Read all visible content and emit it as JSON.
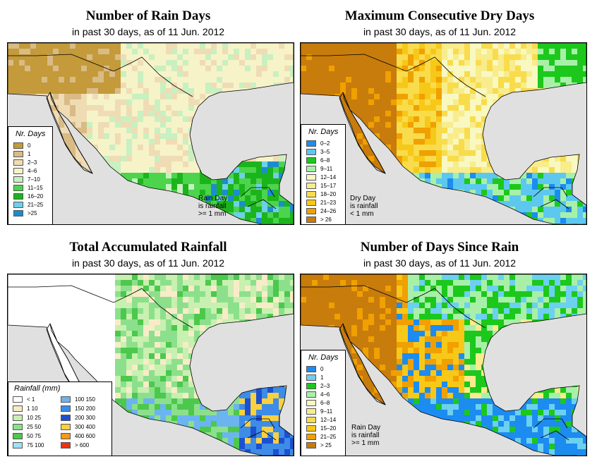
{
  "panels": [
    {
      "title": "Number of Rain Days",
      "subtitle": "in past 30 days, as of  11 Jun. 2012",
      "legend_title": "Nr. Days",
      "legend": [
        {
          "label": "0",
          "color": "#c49a3a"
        },
        {
          "label": "1",
          "color": "#d9bb85"
        },
        {
          "label": "2–3",
          "color": "#efdcb5"
        },
        {
          "label": "4–6",
          "color": "#f7f3c8"
        },
        {
          "label": "7–10",
          "color": "#c8f0c0"
        },
        {
          "label": "11–15",
          "color": "#4cd44c"
        },
        {
          "label": "16–20",
          "color": "#1cb41c"
        },
        {
          "label": "21–25",
          "color": "#6ed0e8"
        },
        {
          "label": ">25",
          "color": "#1c8cd0"
        }
      ],
      "note": "Rain Day\nis rainfall\n>= 1 mm"
    },
    {
      "title": "Maximum Consecutive Dry Days",
      "subtitle": "in past 30 days, as of  11 Jun. 2012",
      "legend_title": "Nr. Days",
      "legend": [
        {
          "label": "0–2",
          "color": "#1c8cf0"
        },
        {
          "label": "3–5",
          "color": "#5cc8f0"
        },
        {
          "label": "6–8",
          "color": "#1cc81c"
        },
        {
          "label": "9–11",
          "color": "#a8f0a8"
        },
        {
          "label": "12–14",
          "color": "#f8f8c0"
        },
        {
          "label": "15–17",
          "color": "#f8ec8c"
        },
        {
          "label": "18–20",
          "color": "#f8dc4c"
        },
        {
          "label": "21–23",
          "color": "#f8c818"
        },
        {
          "label": "24–26",
          "color": "#f0a000"
        },
        {
          "label": "> 26",
          "color": "#c87c0c"
        }
      ],
      "note": "Dry Day\nis rainfall\n< 1 mm"
    },
    {
      "title": "Total Accumulated Rainfall",
      "subtitle": "in past 30 days, as of  11 Jun. 2012",
      "legend_title": "Rainfall (mm)",
      "legend_left": [
        {
          "label": "< 1",
          "color": "#ffffff"
        },
        {
          "label": "1    10",
          "color": "#f8ecc8"
        },
        {
          "label": "10    25",
          "color": "#c8f0b0"
        },
        {
          "label": "25    50",
          "color": "#8ce08c"
        },
        {
          "label": "50    75",
          "color": "#4cc84c"
        },
        {
          "label": "75   100",
          "color": "#a0e0f8"
        }
      ],
      "legend_right": [
        {
          "label": "100  150",
          "color": "#6cb4f0"
        },
        {
          "label": "150  200",
          "color": "#3c8ce8"
        },
        {
          "label": "200  300",
          "color": "#1c50d0"
        },
        {
          "label": "300  400",
          "color": "#f8d040"
        },
        {
          "label": "400  600",
          "color": "#f89818"
        },
        {
          "label": "> 600",
          "color": "#f03010"
        }
      ]
    },
    {
      "title": "Number of Days Since Rain",
      "subtitle": "in past 30 days, as of  11 Jun. 2012",
      "legend_title": "Nr. Days",
      "legend": [
        {
          "label": "0",
          "color": "#1c8cf0"
        },
        {
          "label": "1",
          "color": "#6cd0f0"
        },
        {
          "label": "2–3",
          "color": "#1cc81c"
        },
        {
          "label": "4–6",
          "color": "#a8f0a8"
        },
        {
          "label": "6–8",
          "color": "#f8f8c0"
        },
        {
          "label": "9–11",
          "color": "#f8ec8c"
        },
        {
          "label": "12–14",
          "color": "#f8dc4c"
        },
        {
          "label": "15–20",
          "color": "#f8c818"
        },
        {
          "label": "21–25",
          "color": "#f0a000"
        },
        {
          "label": "> 25",
          "color": "#c87c0c"
        }
      ],
      "note": "Rain Day\nis rainfall\n>= 1 mm"
    }
  ]
}
